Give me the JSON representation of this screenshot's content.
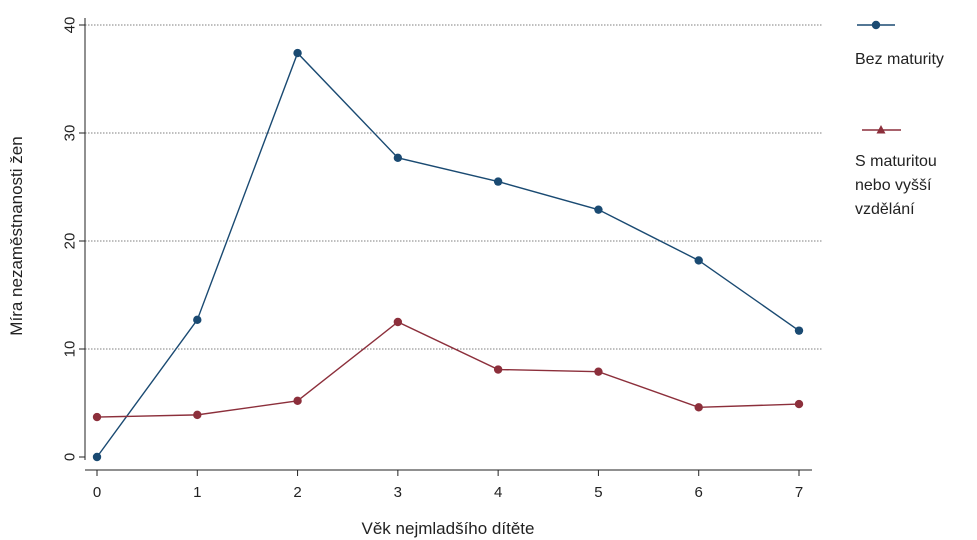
{
  "chart_data": {
    "type": "line",
    "xlabel": "Věk nejmladšího dítěte",
    "ylabel": "Míra nezaměstnanosti žen",
    "x": [
      0,
      1,
      2,
      3,
      4,
      5,
      6,
      7
    ],
    "xlim": [
      0,
      7
    ],
    "ylim": [
      0,
      40
    ],
    "yticks": [
      0,
      10,
      20,
      30,
      40
    ],
    "xticks": [
      0,
      1,
      2,
      3,
      4,
      5,
      6,
      7
    ],
    "grid": "horizontal dotted",
    "legend_position": "right",
    "series": [
      {
        "name": "Bez maturity",
        "values": [
          0,
          12.7,
          37.4,
          27.7,
          25.5,
          22.9,
          18.2,
          11.7
        ],
        "color": "#1a4a72",
        "marker": "circle"
      },
      {
        "name": "S maturitou nebo vyšší vzdělání",
        "name_lines": [
          "S maturitou",
          "nebo vyšší",
          "vzdělání"
        ],
        "values": [
          3.7,
          3.9,
          5.2,
          12.5,
          8.1,
          7.9,
          4.6,
          4.9
        ],
        "color": "#8c2f3b",
        "marker": "circle",
        "legend_marker": "triangle"
      }
    ]
  }
}
